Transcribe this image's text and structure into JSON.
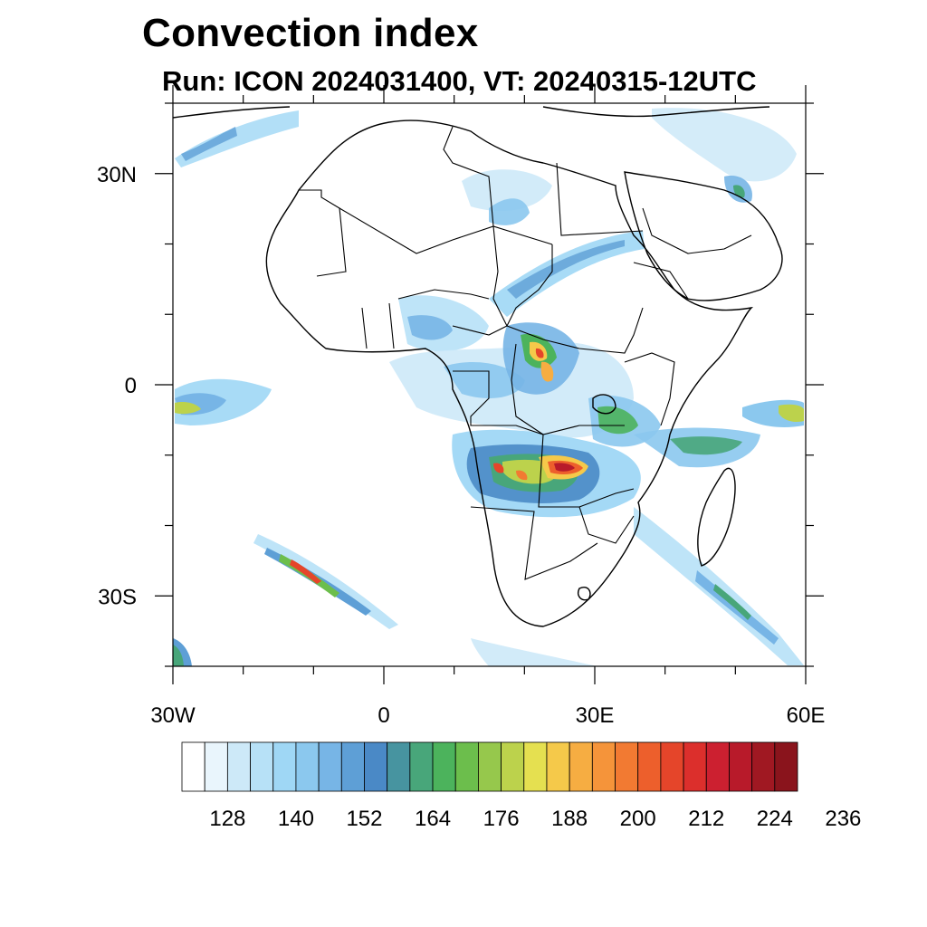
{
  "title": "Convection index",
  "subtitle": "Run: ICON 2024031400,  VT: 20240315-12UTC",
  "map": {
    "lon_range": [
      -30,
      60
    ],
    "lat_range": [
      -40,
      40
    ],
    "lat_ticks": [
      {
        "value": 30,
        "label": "30N"
      },
      {
        "value": 0,
        "label": "0"
      },
      {
        "value": -30,
        "label": "30S"
      }
    ],
    "lon_ticks": [
      {
        "value": -30,
        "label": "30W"
      },
      {
        "value": 0,
        "label": "0"
      },
      {
        "value": 30,
        "label": "30E"
      },
      {
        "value": 60,
        "label": "60E"
      }
    ]
  },
  "colorbar": {
    "labels": [
      "128",
      "140",
      "152",
      "164",
      "176",
      "188",
      "200",
      "212",
      "224",
      "236"
    ],
    "colors": [
      "#ffffff",
      "#e9f5fc",
      "#cde9f8",
      "#b7e1f7",
      "#9fd7f5",
      "#8bc8ee",
      "#77b5e6",
      "#5e9fd6",
      "#4a89c6",
      "#4794a0",
      "#48a67a",
      "#4cb35c",
      "#6cbe4c",
      "#96c84c",
      "#bcd24c",
      "#e5e050",
      "#f5c94a",
      "#f6ad42",
      "#f5943a",
      "#f27a32",
      "#ed5f2c",
      "#e5452a",
      "#dc2f2c",
      "#cc2030",
      "#b81a2a",
      "#a01822",
      "#8a141c"
    ]
  }
}
